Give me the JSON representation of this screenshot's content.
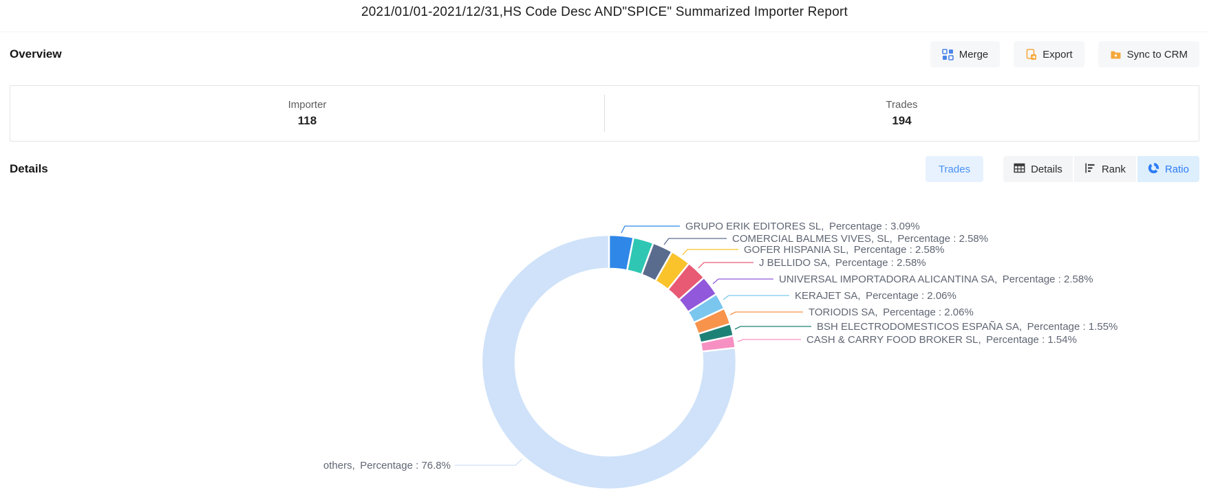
{
  "title": "2021/01/01-2021/12/31,HS Code Desc AND\"SPICE\" Summarized Importer Report",
  "overview": {
    "heading": "Overview",
    "stats": [
      {
        "label": "Importer",
        "value": "118"
      },
      {
        "label": "Trades",
        "value": "194"
      }
    ]
  },
  "toolbar": {
    "actions": [
      {
        "label": "Merge",
        "icon": "merge-icon",
        "icon_color": "#4a86e8"
      },
      {
        "label": "Export",
        "icon": "export-icon",
        "icon_color": "#f5a83c"
      },
      {
        "label": "Sync to CRM",
        "icon": "folder-sync-icon",
        "icon_color": "#f5a83c"
      }
    ]
  },
  "details": {
    "heading": "Details",
    "trades_label": "Trades",
    "views": [
      {
        "label": "Details",
        "icon": "table-icon",
        "active": false
      },
      {
        "label": "Rank",
        "icon": "rank-icon",
        "active": false
      },
      {
        "label": "Ratio",
        "icon": "donut-icon",
        "active": true
      }
    ]
  },
  "chart_data": {
    "type": "pie",
    "donut": true,
    "legend": "none",
    "percentage_label": "Percentage",
    "label_text_color": "#5f6673",
    "slices": [
      {
        "name": "GRUPO ERIK EDITORES SL",
        "value": 3.09,
        "pct": "3.09%",
        "color": "#2F87E8",
        "labeled": true
      },
      {
        "name": "",
        "value": 2.58,
        "pct": "2.58%",
        "color": "#2FC7B4",
        "labeled": false
      },
      {
        "name": "COMERCIAL BALMES VIVES, SL",
        "value": 2.58,
        "pct": "2.58%",
        "color": "#5A6C8E",
        "labeled": true
      },
      {
        "name": "GOFER HISPANIA SL",
        "value": 2.58,
        "pct": "2.58%",
        "color": "#FAC32C",
        "labeled": true
      },
      {
        "name": "J BELLIDO SA",
        "value": 2.58,
        "pct": "2.58%",
        "color": "#E85A74",
        "labeled": true
      },
      {
        "name": "UNIVERSAL IMPORTADORA ALICANTINA SA",
        "value": 2.58,
        "pct": "2.58%",
        "color": "#9158DB",
        "labeled": true
      },
      {
        "name": "KERAJET SA",
        "value": 2.06,
        "pct": "2.06%",
        "color": "#7AC6EE",
        "labeled": true
      },
      {
        "name": "TORIODIS SA",
        "value": 2.06,
        "pct": "2.06%",
        "color": "#F7934B",
        "labeled": true
      },
      {
        "name": "BSH ELECTRODOMESTICOS ESPAÑA SA",
        "value": 1.55,
        "pct": "1.55%",
        "color": "#1E8176",
        "labeled": true
      },
      {
        "name": "CASH & CARRY FOOD BROKER SL",
        "value": 1.54,
        "pct": "1.54%",
        "color": "#F790C2",
        "labeled": true
      },
      {
        "name": "others",
        "value": 76.8,
        "pct": "76.8%",
        "color": "#CFE2F9",
        "labeled": true
      }
    ]
  }
}
